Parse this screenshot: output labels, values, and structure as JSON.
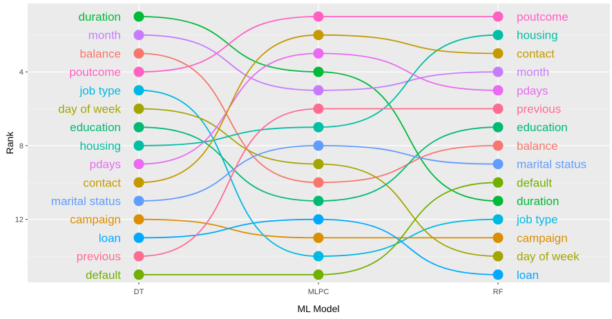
{
  "chart_data": {
    "type": "line",
    "title": "",
    "xlabel": "ML Model",
    "ylabel": "Rank",
    "categories": [
      "DT",
      "MLPC",
      "RF"
    ],
    "y_ticks": [
      4,
      8,
      12
    ],
    "ylim": [
      15,
      1
    ],
    "y_reversed": true,
    "grid": true,
    "legend": "none",
    "series": [
      {
        "name": "duration",
        "color": "#00BA38",
        "values": [
          1,
          4,
          11
        ]
      },
      {
        "name": "month",
        "color": "#C77CFF",
        "values": [
          2,
          5,
          4
        ]
      },
      {
        "name": "balance",
        "color": "#F8766D",
        "values": [
          3,
          10,
          8
        ]
      },
      {
        "name": "poutcome",
        "color": "#FF61C3",
        "values": [
          4,
          1,
          1
        ]
      },
      {
        "name": "job type",
        "color": "#00B9E3",
        "values": [
          5,
          14,
          12
        ]
      },
      {
        "name": "day of week",
        "color": "#A3A500",
        "values": [
          6,
          9,
          14
        ]
      },
      {
        "name": "education",
        "color": "#00BA73",
        "values": [
          7,
          11,
          7
        ]
      },
      {
        "name": "housing",
        "color": "#00BFA4",
        "values": [
          8,
          7,
          2
        ]
      },
      {
        "name": "pdays",
        "color": "#EA6AF1",
        "values": [
          9,
          3,
          5
        ]
      },
      {
        "name": "contact",
        "color": "#C49A00",
        "values": [
          10,
          2,
          3
        ]
      },
      {
        "name": "marital status",
        "color": "#619CFF",
        "values": [
          11,
          8,
          9
        ]
      },
      {
        "name": "campaign",
        "color": "#DB8E00",
        "values": [
          12,
          13,
          13
        ]
      },
      {
        "name": "loan",
        "color": "#00A9FF",
        "values": [
          13,
          12,
          15
        ]
      },
      {
        "name": "previous",
        "color": "#FF6C91",
        "values": [
          14,
          6,
          6
        ]
      },
      {
        "name": "default",
        "color": "#72B000",
        "values": [
          15,
          15,
          10
        ]
      }
    ]
  }
}
